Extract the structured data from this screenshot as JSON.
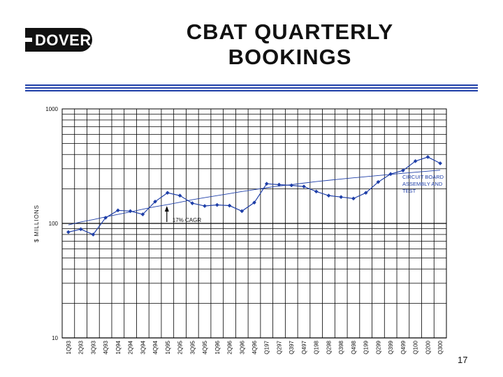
{
  "logo": {
    "text": "DOVER"
  },
  "title": {
    "line1": "CBAT QUARTERLY",
    "line2": "BOOKINGS"
  },
  "page_number": "17",
  "colors": {
    "accent": "#1f3fa8",
    "series": "#1f3fa8",
    "grid": "#000000"
  },
  "chart_data": {
    "type": "line",
    "title": "CBAT QUARTERLY BOOKINGS",
    "ylabel": "$ MILLIONS",
    "xlabel": "",
    "yscale": "log",
    "ylim": [
      10,
      1000
    ],
    "yticks": [
      "10",
      "100",
      "1000"
    ],
    "grid": true,
    "categories": [
      "1Q93",
      "2Q93",
      "3Q93",
      "4Q93",
      "1Q94",
      "2Q94",
      "3Q94",
      "4Q94",
      "1Q95",
      "2Q95",
      "3Q95",
      "4Q95",
      "1Q96",
      "2Q96",
      "3Q96",
      "4Q96",
      "Q197",
      "Q297",
      "Q397",
      "Q497",
      "Q198",
      "Q298",
      "Q398",
      "Q498",
      "Q199",
      "Q299",
      "Q399",
      "Q499",
      "Q100",
      "Q200",
      "Q300"
    ],
    "series": [
      {
        "name": "CIRCUIT BOARD ASSEMBLY AND TEST",
        "values": [
          84,
          89,
          80,
          112,
          130,
          128,
          120,
          155,
          185,
          175,
          150,
          142,
          145,
          143,
          128,
          152,
          222,
          218,
          215,
          210,
          190,
          175,
          170,
          165,
          185,
          230,
          270,
          290,
          350,
          380,
          335
        ]
      },
      {
        "name": "trend",
        "values": [
          97,
          103,
          108,
          114,
          120,
          126,
          133,
          140,
          146,
          153,
          161,
          168,
          175,
          182,
          190,
          197,
          205,
          212,
          218,
          225,
          232,
          238,
          244,
          250,
          256,
          262,
          268,
          274,
          280,
          286,
          292
        ]
      }
    ],
    "annotations": [
      {
        "text": "CIRCUIT BOARD ASSEMBLY AND TEST",
        "at_category": "Q299"
      },
      {
        "text": "17% CAGR",
        "at_category": "1Q95"
      }
    ]
  }
}
